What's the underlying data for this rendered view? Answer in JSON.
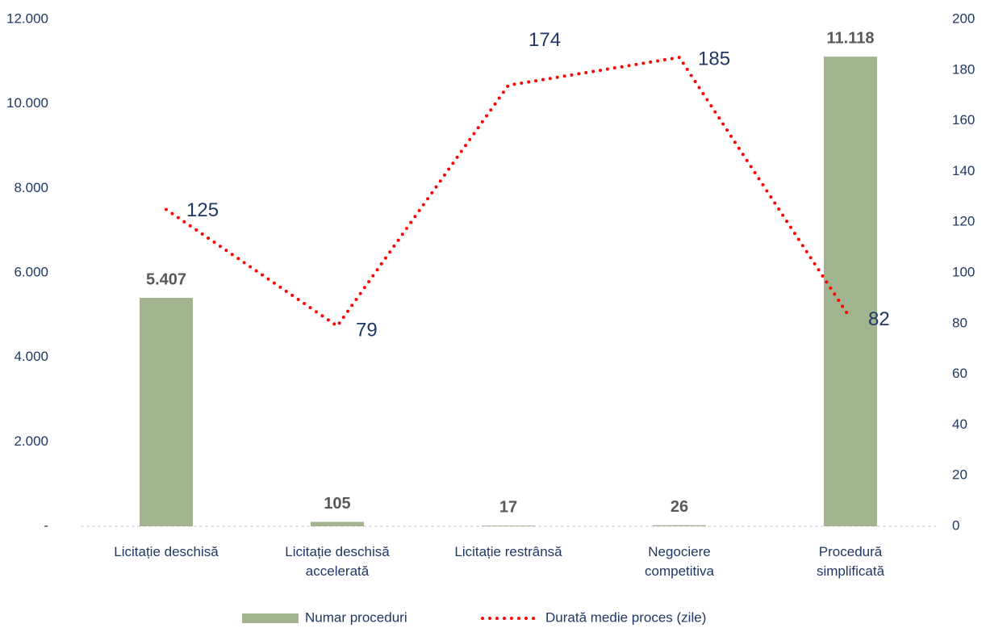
{
  "chart_data": {
    "type": "bar",
    "categories": [
      "Licitație deschisă",
      "Licitație deschisă\naccelerată",
      "Licitație restrânsă",
      "Negociere\ncompetitiva",
      "Procedură\nsimplificată"
    ],
    "series": [
      {
        "name": "Numar proceduri",
        "type": "bar",
        "color": "#a2b38f",
        "values": [
          5407,
          105,
          17,
          26,
          11118
        ],
        "value_labels": [
          "5.407",
          "105",
          "17",
          "26",
          "11.118"
        ]
      },
      {
        "name": "Durată medie proces (zile)",
        "type": "line",
        "axis": "y2",
        "color": "#ff0000",
        "values": [
          125,
          79,
          174,
          185,
          82
        ]
      }
    ],
    "ylim": [
      0,
      12000
    ],
    "yticks": [
      {
        "value": 0,
        "label": "-"
      },
      {
        "value": 2000,
        "label": "2.000"
      },
      {
        "value": 4000,
        "label": "4.000"
      },
      {
        "value": 6000,
        "label": "6.000"
      },
      {
        "value": 8000,
        "label": "8.000"
      },
      {
        "value": 10000,
        "label": "10.000"
      },
      {
        "value": 12000,
        "label": "12.000"
      }
    ],
    "y2lim": [
      0,
      200
    ],
    "y2ticks": [
      0,
      20,
      40,
      60,
      80,
      100,
      120,
      140,
      160,
      180,
      200
    ],
    "legend": "bottom"
  }
}
